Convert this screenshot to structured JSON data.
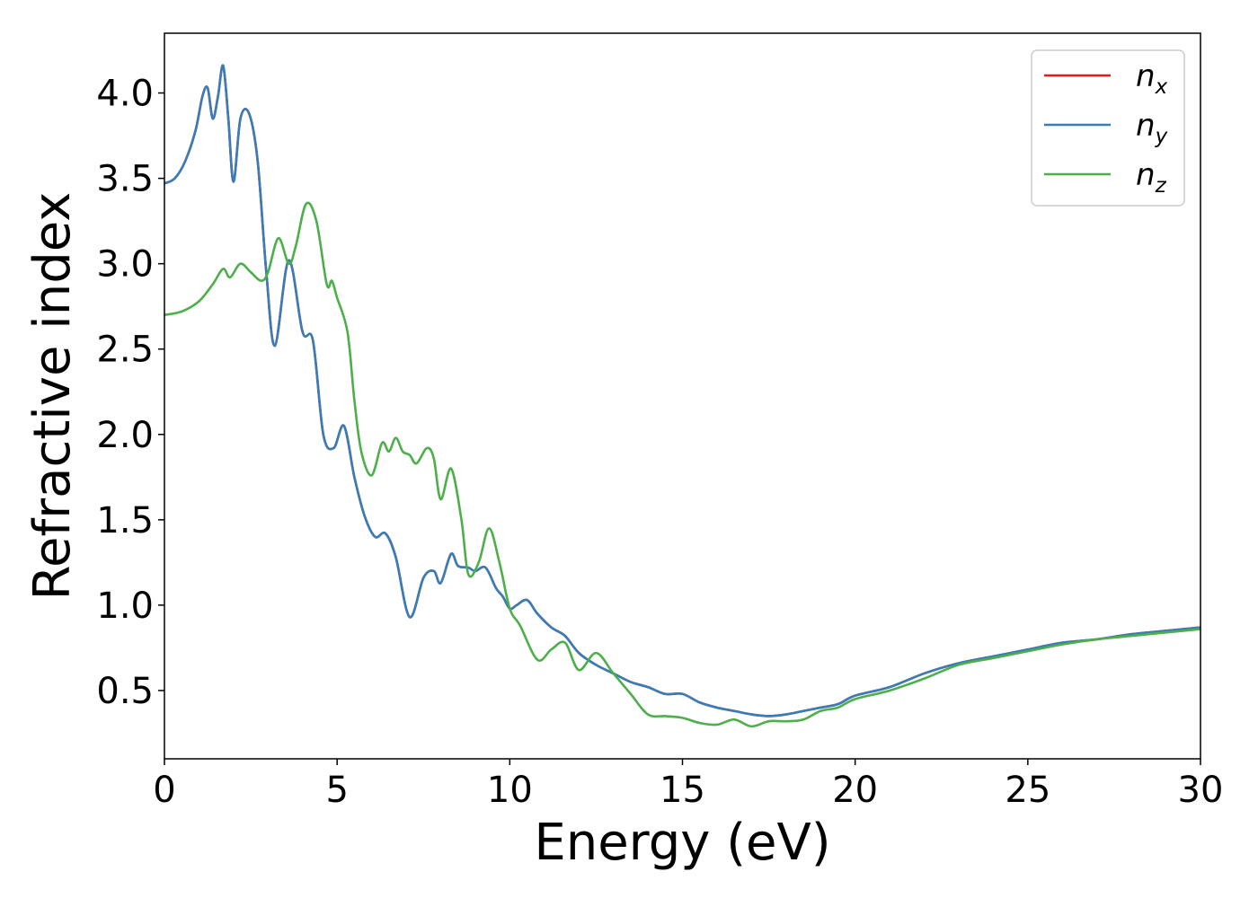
{
  "chart_data": {
    "type": "line",
    "title": "",
    "xlabel": "Energy (eV)",
    "ylabel": "Refractive index",
    "xlim": [
      0,
      30
    ],
    "ylim": [
      0.1,
      4.35
    ],
    "xticks": [
      0,
      5,
      10,
      15,
      20,
      25,
      30
    ],
    "yticks": [
      0.5,
      1.0,
      1.5,
      2.0,
      2.5,
      3.0,
      3.5,
      4.0
    ],
    "xtick_labels": [
      "0",
      "5",
      "10",
      "15",
      "20",
      "25",
      "30"
    ],
    "ytick_labels": [
      "0.5",
      "1.0",
      "1.5",
      "2.0",
      "2.5",
      "3.0",
      "3.5",
      "4.0"
    ],
    "grid": false,
    "legend_position": "top-right",
    "series": [
      {
        "name": "n_x",
        "label_main": "n",
        "label_sub": "x",
        "color": "#e41a1c",
        "x": [
          0,
          0.3,
          0.6,
          0.9,
          1.1,
          1.25,
          1.4,
          1.55,
          1.7,
          1.85,
          2.0,
          2.2,
          2.45,
          2.7,
          2.95,
          3.2,
          3.6,
          4.0,
          4.3,
          4.6,
          4.9,
          5.2,
          5.5,
          5.8,
          6.1,
          6.4,
          6.7,
          7.1,
          7.5,
          7.8,
          8.0,
          8.3,
          8.5,
          8.8,
          9.0,
          9.3,
          9.6,
          9.8,
          10.0,
          10.2,
          10.5,
          10.8,
          11.2,
          11.6,
          12.0,
          12.5,
          13.0,
          13.5,
          14.0,
          14.5,
          15.0,
          15.5,
          16.0,
          16.5,
          17.0,
          17.5,
          18.0,
          18.5,
          19.0,
          19.5,
          20.0,
          21.0,
          22.0,
          23.0,
          24.0,
          25.0,
          26.0,
          27.0,
          28.0,
          29.0,
          30.0
        ],
        "values": [
          3.47,
          3.5,
          3.6,
          3.78,
          3.98,
          4.03,
          3.85,
          3.98,
          4.16,
          3.85,
          3.48,
          3.85,
          3.88,
          3.6,
          2.95,
          2.52,
          3.02,
          2.6,
          2.55,
          2.0,
          1.92,
          2.05,
          1.75,
          1.52,
          1.4,
          1.42,
          1.28,
          0.93,
          1.16,
          1.2,
          1.13,
          1.3,
          1.23,
          1.22,
          1.2,
          1.22,
          1.1,
          1.05,
          0.98,
          1.0,
          1.03,
          0.95,
          0.87,
          0.82,
          0.72,
          0.65,
          0.6,
          0.55,
          0.52,
          0.48,
          0.48,
          0.43,
          0.4,
          0.38,
          0.36,
          0.35,
          0.36,
          0.38,
          0.4,
          0.42,
          0.47,
          0.52,
          0.6,
          0.66,
          0.7,
          0.74,
          0.78,
          0.8,
          0.83,
          0.85,
          0.87
        ]
      },
      {
        "name": "n_y",
        "label_main": "n",
        "label_sub": "y",
        "color": "#377eb8",
        "x": [
          0,
          0.3,
          0.6,
          0.9,
          1.1,
          1.25,
          1.4,
          1.55,
          1.7,
          1.85,
          2.0,
          2.2,
          2.45,
          2.7,
          2.95,
          3.2,
          3.6,
          4.0,
          4.3,
          4.6,
          4.9,
          5.2,
          5.5,
          5.8,
          6.1,
          6.4,
          6.7,
          7.1,
          7.5,
          7.8,
          8.0,
          8.3,
          8.5,
          8.8,
          9.0,
          9.3,
          9.6,
          9.8,
          10.0,
          10.2,
          10.5,
          10.8,
          11.2,
          11.6,
          12.0,
          12.5,
          13.0,
          13.5,
          14.0,
          14.5,
          15.0,
          15.5,
          16.0,
          16.5,
          17.0,
          17.5,
          18.0,
          18.5,
          19.0,
          19.5,
          20.0,
          21.0,
          22.0,
          23.0,
          24.0,
          25.0,
          26.0,
          27.0,
          28.0,
          29.0,
          30.0
        ],
        "values": [
          3.47,
          3.5,
          3.6,
          3.78,
          3.98,
          4.03,
          3.85,
          3.98,
          4.16,
          3.85,
          3.48,
          3.85,
          3.88,
          3.6,
          2.95,
          2.52,
          3.02,
          2.6,
          2.55,
          2.0,
          1.92,
          2.05,
          1.75,
          1.52,
          1.4,
          1.42,
          1.28,
          0.93,
          1.16,
          1.2,
          1.13,
          1.3,
          1.23,
          1.22,
          1.2,
          1.22,
          1.1,
          1.05,
          0.98,
          1.0,
          1.03,
          0.95,
          0.87,
          0.82,
          0.72,
          0.65,
          0.6,
          0.55,
          0.52,
          0.48,
          0.48,
          0.43,
          0.4,
          0.38,
          0.36,
          0.35,
          0.36,
          0.38,
          0.4,
          0.42,
          0.47,
          0.52,
          0.6,
          0.66,
          0.7,
          0.74,
          0.78,
          0.8,
          0.83,
          0.85,
          0.87
        ]
      },
      {
        "name": "n_z",
        "label_main": "n",
        "label_sub": "z",
        "color": "#4daf4a",
        "x": [
          0,
          0.5,
          1.0,
          1.4,
          1.7,
          1.9,
          2.2,
          2.5,
          2.8,
          3.0,
          3.3,
          3.6,
          3.8,
          4.1,
          4.4,
          4.7,
          4.85,
          5.0,
          5.3,
          5.5,
          5.7,
          6.0,
          6.3,
          6.5,
          6.7,
          6.9,
          7.1,
          7.3,
          7.6,
          7.8,
          8.0,
          8.3,
          8.6,
          8.8,
          9.1,
          9.4,
          9.7,
          10.0,
          10.3,
          10.8,
          11.2,
          11.6,
          12.0,
          12.5,
          13.0,
          13.5,
          14.0,
          14.5,
          15.0,
          15.5,
          16.0,
          16.5,
          17.0,
          17.5,
          18.0,
          18.5,
          19.0,
          19.5,
          20.0,
          21.0,
          22.0,
          23.0,
          24.0,
          25.0,
          26.0,
          27.0,
          28.0,
          29.0,
          30.0
        ],
        "values": [
          2.7,
          2.72,
          2.78,
          2.88,
          2.97,
          2.92,
          3.0,
          2.95,
          2.9,
          2.95,
          3.15,
          3.0,
          3.1,
          3.35,
          3.25,
          2.88,
          2.9,
          2.8,
          2.6,
          2.2,
          1.9,
          1.76,
          1.95,
          1.9,
          1.98,
          1.9,
          1.88,
          1.83,
          1.92,
          1.86,
          1.62,
          1.8,
          1.5,
          1.18,
          1.25,
          1.45,
          1.25,
          0.98,
          0.88,
          0.68,
          0.74,
          0.78,
          0.62,
          0.72,
          0.6,
          0.48,
          0.36,
          0.35,
          0.34,
          0.31,
          0.3,
          0.33,
          0.29,
          0.32,
          0.32,
          0.33,
          0.38,
          0.4,
          0.45,
          0.5,
          0.57,
          0.65,
          0.69,
          0.73,
          0.77,
          0.8,
          0.82,
          0.84,
          0.86
        ]
      }
    ]
  }
}
